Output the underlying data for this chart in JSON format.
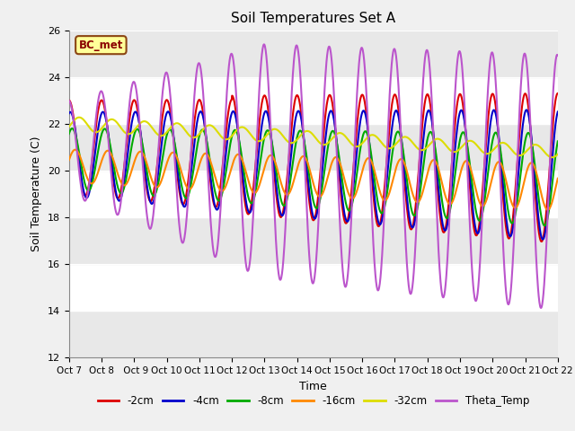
{
  "title": "Soil Temperatures Set A",
  "xlabel": "Time",
  "ylabel": "Soil Temperature (C)",
  "ylim": [
    12,
    26
  ],
  "xtick_labels": [
    "Oct 7",
    "Oct 8",
    " Oct 9",
    "Oct 10",
    "Oct 11",
    "Oct 12",
    "Oct 13",
    "Oct 14",
    "Oct 15",
    "Oct 16",
    "Oct 17",
    "Oct 18",
    "Oct 19",
    "Oct 20",
    "Oct 21",
    "Oct 22"
  ],
  "annotation_text": "BC_met",
  "line_colors": [
    "#dd0000",
    "#0000cc",
    "#00aa00",
    "#ff8800",
    "#dddd00",
    "#bb55cc"
  ],
  "line_labels": [
    "-2cm",
    "-4cm",
    "-8cm",
    "-16cm",
    "-32cm",
    "Theta_Temp"
  ],
  "line_widths": [
    1.5,
    1.5,
    1.5,
    1.5,
    1.5,
    1.5
  ],
  "bg_outer": "#f0f0f0",
  "bg_inner": "#e8e8e8",
  "band_white": "#ffffff",
  "band_gray": "#d8d8d8"
}
